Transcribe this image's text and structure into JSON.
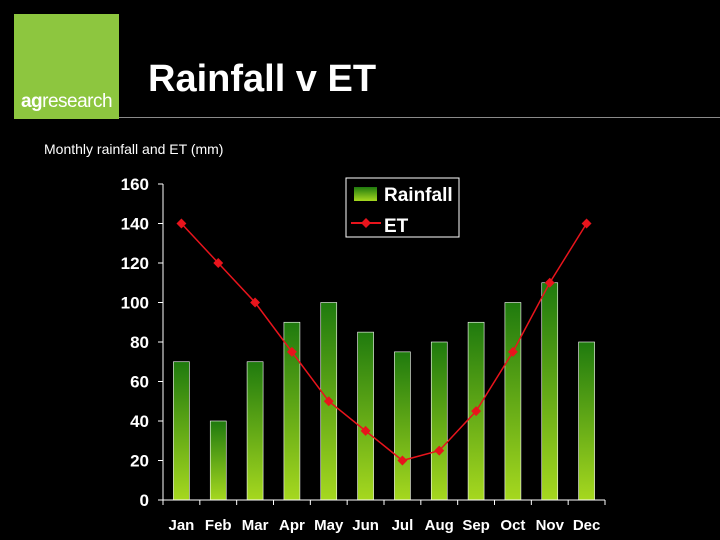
{
  "header": {
    "logo_prefix": "ag",
    "logo_suffix": "research",
    "title": "Rainfall v ET"
  },
  "colors": {
    "brand_green": "#8dc63f",
    "bar_top": "#1f7a0e",
    "bar_bottom": "#a6d81f",
    "line": "#e8141c"
  },
  "chart_data": {
    "type": "bar",
    "title": "Monthly rainfall and ET (mm)",
    "xlabel": "",
    "ylabel": "",
    "ylim": [
      0,
      160
    ],
    "yticks": [
      0,
      20,
      40,
      60,
      80,
      100,
      120,
      140,
      160
    ],
    "categories": [
      "Jan",
      "Feb",
      "Mar",
      "Apr",
      "May",
      "Jun",
      "Jul",
      "Aug",
      "Sep",
      "Oct",
      "Nov",
      "Dec"
    ],
    "series": [
      {
        "name": "Rainfall",
        "type": "bar",
        "values": [
          70,
          40,
          70,
          90,
          100,
          85,
          75,
          80,
          90,
          100,
          110,
          80
        ]
      },
      {
        "name": "ET",
        "type": "line",
        "values": [
          140,
          120,
          100,
          75,
          50,
          35,
          20,
          25,
          45,
          75,
          110,
          140
        ]
      }
    ],
    "legend": "top-center",
    "grid": false
  }
}
